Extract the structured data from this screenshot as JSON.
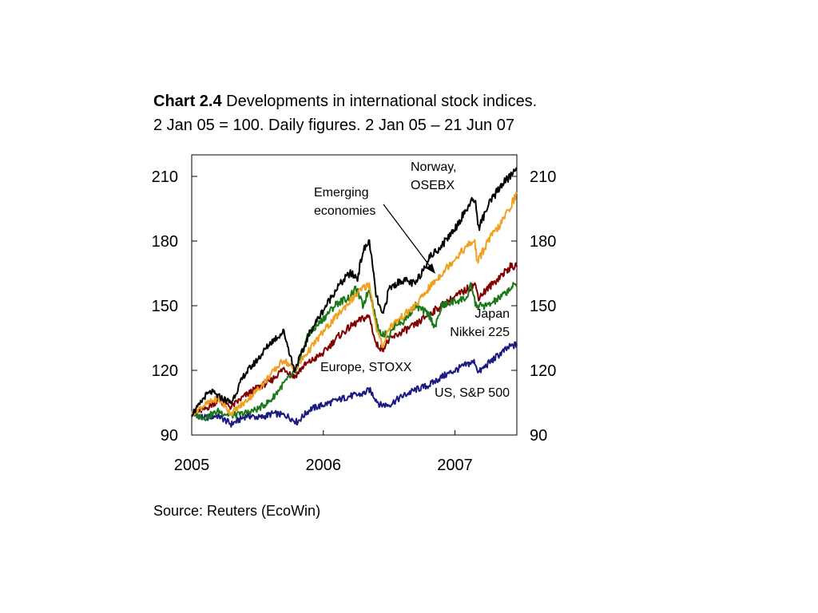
{
  "title": {
    "chart_number": "Chart 2.4",
    "line1_rest": " Developments in international stock indices.",
    "line2": "2 Jan 05 = 100. Daily figures. 2 Jan 05 – 21 Jun 07"
  },
  "source": "Source: Reuters (EcoWin)",
  "chart_data": {
    "type": "line",
    "x_unit": "year",
    "xlim": [
      2005.0,
      2007.47
    ],
    "ylim": [
      90,
      220
    ],
    "yticks": [
      90,
      120,
      150,
      180,
      210
    ],
    "xtick_labels": [
      "2005",
      "2006",
      "2007"
    ],
    "xtick_values": [
      2005.0,
      2006.0,
      2007.0
    ],
    "grid": false,
    "series": [
      {
        "name": "US, S&P 500",
        "label_lines": [
          "US, S&P 500"
        ],
        "color": "#1a1a80",
        "points": [
          [
            2005.0,
            100
          ],
          [
            2005.1,
            98
          ],
          [
            2005.2,
            99
          ],
          [
            2005.3,
            95
          ],
          [
            2005.42,
            99
          ],
          [
            2005.52,
            98
          ],
          [
            2005.62,
            100
          ],
          [
            2005.72,
            99
          ],
          [
            2005.8,
            96
          ],
          [
            2005.9,
            102
          ],
          [
            2006.0,
            104
          ],
          [
            2006.1,
            106
          ],
          [
            2006.2,
            108
          ],
          [
            2006.3,
            109
          ],
          [
            2006.35,
            111
          ],
          [
            2006.43,
            104
          ],
          [
            2006.5,
            104
          ],
          [
            2006.6,
            108
          ],
          [
            2006.7,
            111
          ],
          [
            2006.8,
            113
          ],
          [
            2006.9,
            117
          ],
          [
            2007.0,
            120
          ],
          [
            2007.1,
            123
          ],
          [
            2007.15,
            124
          ],
          [
            2007.18,
            119
          ],
          [
            2007.25,
            123
          ],
          [
            2007.35,
            128
          ],
          [
            2007.42,
            131
          ],
          [
            2007.47,
            132
          ]
        ]
      },
      {
        "name": "Europe, STOXX",
        "label_lines": [
          "Europe, STOXX"
        ],
        "color": "#800000",
        "points": [
          [
            2005.0,
            100
          ],
          [
            2005.1,
            102
          ],
          [
            2005.2,
            106
          ],
          [
            2005.3,
            103
          ],
          [
            2005.4,
            108
          ],
          [
            2005.5,
            112
          ],
          [
            2005.6,
            115
          ],
          [
            2005.7,
            121
          ],
          [
            2005.78,
            117
          ],
          [
            2005.85,
            122
          ],
          [
            2006.0,
            128
          ],
          [
            2006.1,
            135
          ],
          [
            2006.2,
            140
          ],
          [
            2006.3,
            144
          ],
          [
            2006.35,
            145
          ],
          [
            2006.4,
            132
          ],
          [
            2006.45,
            130
          ],
          [
            2006.5,
            134
          ],
          [
            2006.6,
            138
          ],
          [
            2006.7,
            141
          ],
          [
            2006.8,
            146
          ],
          [
            2006.9,
            150
          ],
          [
            2007.0,
            154
          ],
          [
            2007.1,
            158
          ],
          [
            2007.15,
            160
          ],
          [
            2007.18,
            154
          ],
          [
            2007.25,
            158
          ],
          [
            2007.35,
            164
          ],
          [
            2007.42,
            168
          ],
          [
            2007.47,
            168
          ]
        ]
      },
      {
        "name": "Japan Nikkei 225",
        "label_lines": [
          "Japan",
          "Nikkei 225"
        ],
        "color": "#1a7a1a",
        "points": [
          [
            2005.0,
            100
          ],
          [
            2005.1,
            98
          ],
          [
            2005.2,
            101
          ],
          [
            2005.3,
            99
          ],
          [
            2005.4,
            100
          ],
          [
            2005.5,
            102
          ],
          [
            2005.6,
            106
          ],
          [
            2005.7,
            114
          ],
          [
            2005.8,
            120
          ],
          [
            2005.88,
            136
          ],
          [
            2006.0,
            144
          ],
          [
            2006.1,
            151
          ],
          [
            2006.2,
            154
          ],
          [
            2006.25,
            158
          ],
          [
            2006.3,
            150
          ],
          [
            2006.35,
            158
          ],
          [
            2006.42,
            138
          ],
          [
            2006.5,
            136
          ],
          [
            2006.55,
            142
          ],
          [
            2006.6,
            142
          ],
          [
            2006.7,
            150
          ],
          [
            2006.8,
            146
          ],
          [
            2006.85,
            140
          ],
          [
            2006.9,
            150
          ],
          [
            2007.0,
            152
          ],
          [
            2007.1,
            154
          ],
          [
            2007.12,
            160
          ],
          [
            2007.16,
            150
          ],
          [
            2007.25,
            150
          ],
          [
            2007.35,
            154
          ],
          [
            2007.42,
            158
          ],
          [
            2007.47,
            160
          ]
        ]
      },
      {
        "name": "Emerging economies",
        "label_lines": [
          "Emerging",
          "economies"
        ],
        "color": "#f0a020",
        "points": [
          [
            2005.0,
            100
          ],
          [
            2005.1,
            104
          ],
          [
            2005.2,
            107
          ],
          [
            2005.3,
            100
          ],
          [
            2005.4,
            105
          ],
          [
            2005.5,
            111
          ],
          [
            2005.6,
            118
          ],
          [
            2005.7,
            125
          ],
          [
            2005.78,
            120
          ],
          [
            2005.85,
            126
          ],
          [
            2006.0,
            138
          ],
          [
            2006.1,
            145
          ],
          [
            2006.2,
            152
          ],
          [
            2006.3,
            158
          ],
          [
            2006.35,
            160
          ],
          [
            2006.4,
            140
          ],
          [
            2006.45,
            131
          ],
          [
            2006.5,
            140
          ],
          [
            2006.6,
            145
          ],
          [
            2006.7,
            150
          ],
          [
            2006.8,
            158
          ],
          [
            2006.9,
            165
          ],
          [
            2007.0,
            172
          ],
          [
            2007.1,
            178
          ],
          [
            2007.15,
            180
          ],
          [
            2007.17,
            170
          ],
          [
            2007.25,
            180
          ],
          [
            2007.35,
            188
          ],
          [
            2007.42,
            196
          ],
          [
            2007.47,
            202
          ]
        ]
      },
      {
        "name": "Norway, OSEBX",
        "label_lines": [
          "Norway,",
          "OSEBX"
        ],
        "color": "#000000",
        "points": [
          [
            2005.0,
            100
          ],
          [
            2005.05,
            103
          ],
          [
            2005.1,
            108
          ],
          [
            2005.15,
            110
          ],
          [
            2005.2,
            108
          ],
          [
            2005.3,
            105
          ],
          [
            2005.4,
            118
          ],
          [
            2005.5,
            125
          ],
          [
            2005.6,
            133
          ],
          [
            2005.7,
            138
          ],
          [
            2005.78,
            120
          ],
          [
            2005.85,
            130
          ],
          [
            2005.9,
            138
          ],
          [
            2006.0,
            148
          ],
          [
            2006.1,
            158
          ],
          [
            2006.2,
            165
          ],
          [
            2006.26,
            163
          ],
          [
            2006.3,
            175
          ],
          [
            2006.35,
            180
          ],
          [
            2006.4,
            155
          ],
          [
            2006.45,
            145
          ],
          [
            2006.5,
            158
          ],
          [
            2006.6,
            162
          ],
          [
            2006.7,
            160
          ],
          [
            2006.8,
            172
          ],
          [
            2006.9,
            178
          ],
          [
            2007.0,
            186
          ],
          [
            2007.1,
            196
          ],
          [
            2007.15,
            200
          ],
          [
            2007.18,
            186
          ],
          [
            2007.25,
            196
          ],
          [
            2007.35,
            206
          ],
          [
            2007.42,
            210
          ],
          [
            2007.47,
            214
          ]
        ]
      }
    ],
    "annotations": [
      {
        "text_lines": [
          "Emerging",
          "economies"
        ],
        "arrow": true
      }
    ]
  }
}
